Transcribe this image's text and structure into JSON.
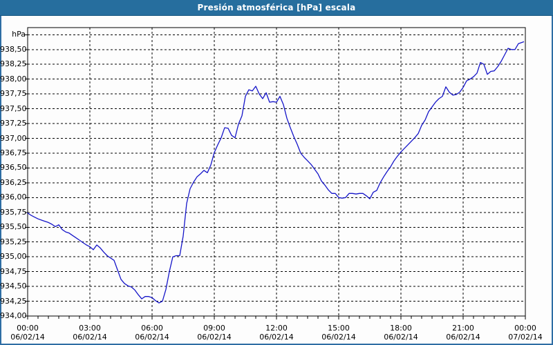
{
  "window": {
    "title": "Presión atmosférica [hPa] escala"
  },
  "colors": {
    "title_bar_bg": "#266e9e",
    "title_text": "#ffffff",
    "window_border": "#2e6da4",
    "plot_frame": "#000000",
    "grid": "#000000",
    "series_line": "#1414c8",
    "background": "#fdfdfd",
    "label_text": "#000000"
  },
  "chart_data": {
    "type": "line",
    "title": "Presión atmosférica [hPa] escala",
    "y_unit_label": "hPa",
    "xlabel": "",
    "ylabel": "hPa",
    "ylim": [
      934.0,
      938.87
    ],
    "y_gridline_max": 938.75,
    "y_tick_step": 0.25,
    "grid": "dashed",
    "decimal_separator": ",",
    "y_tick_labels": [
      "938,50",
      "938,25",
      "938,00",
      "937,75",
      "937,50",
      "937,25",
      "937,00",
      "936,75",
      "936,50",
      "936,25",
      "936,00",
      "935,75",
      "935,50",
      "935,25",
      "935,00",
      "934,75",
      "934,50",
      "934,25",
      "934,00"
    ],
    "x_ticks": [
      {
        "t": 0,
        "time": "00:00",
        "date": "06/02/14"
      },
      {
        "t": 180,
        "time": "03:00",
        "date": "06/02/14"
      },
      {
        "t": 360,
        "time": "06:00",
        "date": "06/02/14"
      },
      {
        "t": 540,
        "time": "09:00",
        "date": "06/02/14"
      },
      {
        "t": 720,
        "time": "12:00",
        "date": "06/02/14"
      },
      {
        "t": 900,
        "time": "15:00",
        "date": "06/02/14"
      },
      {
        "t": 1080,
        "time": "18:00",
        "date": "06/02/14"
      },
      {
        "t": 1260,
        "time": "21:00",
        "date": "06/02/14"
      },
      {
        "t": 1440,
        "time": "00:00",
        "date": "07/02/14"
      }
    ],
    "x_minor_tick_minutes": 30,
    "series": [
      {
        "name": "Presión atmosférica [hPa]",
        "points": [
          [
            0,
            935.74
          ],
          [
            10,
            935.7
          ],
          [
            20,
            935.67
          ],
          [
            30,
            935.64
          ],
          [
            40,
            935.62
          ],
          [
            50,
            935.6
          ],
          [
            60,
            935.58
          ],
          [
            70,
            935.55
          ],
          [
            80,
            935.51
          ],
          [
            90,
            935.54
          ],
          [
            100,
            935.46
          ],
          [
            110,
            935.42
          ],
          [
            120,
            935.4
          ],
          [
            130,
            935.36
          ],
          [
            140,
            935.32
          ],
          [
            150,
            935.28
          ],
          [
            160,
            935.24
          ],
          [
            170,
            935.2
          ],
          [
            180,
            935.17
          ],
          [
            190,
            935.12
          ],
          [
            200,
            935.2
          ],
          [
            210,
            935.15
          ],
          [
            220,
            935.08
          ],
          [
            230,
            935.02
          ],
          [
            240,
            934.98
          ],
          [
            250,
            934.94
          ],
          [
            260,
            934.78
          ],
          [
            270,
            934.62
          ],
          [
            280,
            934.55
          ],
          [
            290,
            934.51
          ],
          [
            300,
            934.49
          ],
          [
            310,
            934.44
          ],
          [
            320,
            934.36
          ],
          [
            330,
            934.29
          ],
          [
            340,
            934.33
          ],
          [
            350,
            934.33
          ],
          [
            360,
            934.31
          ],
          [
            370,
            934.26
          ],
          [
            380,
            934.22
          ],
          [
            390,
            934.25
          ],
          [
            400,
            934.45
          ],
          [
            410,
            934.75
          ],
          [
            420,
            935.0
          ],
          [
            430,
            935.02
          ],
          [
            440,
            935.02
          ],
          [
            450,
            935.35
          ],
          [
            460,
            935.9
          ],
          [
            470,
            936.15
          ],
          [
            480,
            936.26
          ],
          [
            490,
            936.35
          ],
          [
            500,
            936.4
          ],
          [
            510,
            936.46
          ],
          [
            520,
            936.42
          ],
          [
            530,
            936.55
          ],
          [
            540,
            936.76
          ],
          [
            550,
            936.89
          ],
          [
            560,
            937.01
          ],
          [
            570,
            937.18
          ],
          [
            580,
            937.17
          ],
          [
            590,
            937.05
          ],
          [
            600,
            937.01
          ],
          [
            610,
            937.24
          ],
          [
            620,
            937.38
          ],
          [
            630,
            937.71
          ],
          [
            640,
            937.82
          ],
          [
            650,
            937.8
          ],
          [
            660,
            937.88
          ],
          [
            670,
            937.75
          ],
          [
            680,
            937.67
          ],
          [
            690,
            937.77
          ],
          [
            700,
            937.61
          ],
          [
            710,
            937.62
          ],
          [
            720,
            937.61
          ],
          [
            730,
            937.71
          ],
          [
            740,
            937.57
          ],
          [
            750,
            937.34
          ],
          [
            760,
            937.18
          ],
          [
            770,
            937.03
          ],
          [
            780,
            936.9
          ],
          [
            790,
            936.75
          ],
          [
            800,
            936.68
          ],
          [
            810,
            936.62
          ],
          [
            820,
            936.56
          ],
          [
            830,
            936.48
          ],
          [
            840,
            936.4
          ],
          [
            850,
            936.28
          ],
          [
            860,
            936.21
          ],
          [
            870,
            936.13
          ],
          [
            880,
            936.07
          ],
          [
            890,
            936.07
          ],
          [
            900,
            936.0
          ],
          [
            910,
            935.99
          ],
          [
            920,
            936.0
          ],
          [
            930,
            936.07
          ],
          [
            940,
            936.07
          ],
          [
            950,
            936.06
          ],
          [
            960,
            936.07
          ],
          [
            970,
            936.07
          ],
          [
            980,
            936.03
          ],
          [
            990,
            935.98
          ],
          [
            1000,
            936.09
          ],
          [
            1010,
            936.12
          ],
          [
            1020,
            936.25
          ],
          [
            1030,
            936.35
          ],
          [
            1040,
            936.44
          ],
          [
            1050,
            936.52
          ],
          [
            1060,
            936.62
          ],
          [
            1070,
            936.7
          ],
          [
            1080,
            936.77
          ],
          [
            1090,
            936.83
          ],
          [
            1100,
            936.89
          ],
          [
            1110,
            936.95
          ],
          [
            1120,
            937.01
          ],
          [
            1130,
            937.08
          ],
          [
            1140,
            937.22
          ],
          [
            1150,
            937.31
          ],
          [
            1160,
            937.45
          ],
          [
            1170,
            937.53
          ],
          [
            1180,
            937.61
          ],
          [
            1190,
            937.67
          ],
          [
            1200,
            937.71
          ],
          [
            1210,
            937.87
          ],
          [
            1220,
            937.78
          ],
          [
            1230,
            937.73
          ],
          [
            1240,
            937.74
          ],
          [
            1250,
            937.78
          ],
          [
            1260,
            937.86
          ],
          [
            1270,
            937.97
          ],
          [
            1280,
            938.0
          ],
          [
            1290,
            938.04
          ],
          [
            1300,
            938.1
          ],
          [
            1310,
            938.28
          ],
          [
            1320,
            938.25
          ],
          [
            1330,
            938.08
          ],
          [
            1340,
            938.13
          ],
          [
            1350,
            938.14
          ],
          [
            1360,
            938.21
          ],
          [
            1370,
            938.3
          ],
          [
            1380,
            938.41
          ],
          [
            1390,
            938.52
          ],
          [
            1400,
            938.5
          ],
          [
            1410,
            938.5
          ],
          [
            1420,
            938.6
          ],
          [
            1430,
            938.62
          ],
          [
            1435,
            938.63
          ]
        ]
      }
    ]
  }
}
